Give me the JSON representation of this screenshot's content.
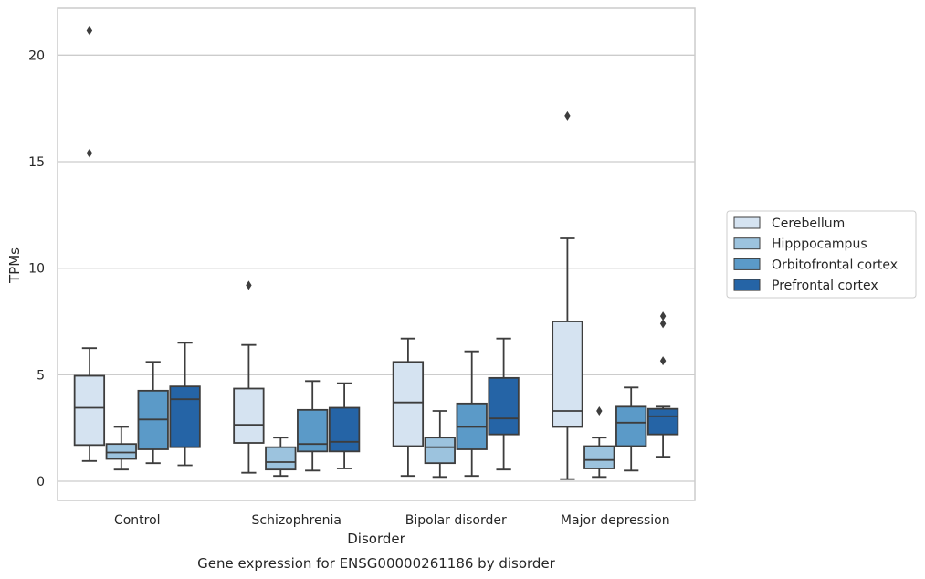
{
  "chart_data": {
    "type": "box",
    "title": "",
    "caption": "Gene expression for ENSG00000261186 by disorder",
    "xlabel": "Disorder",
    "ylabel": "TPMs",
    "ylim": [
      -0.9,
      22.2
    ],
    "yticks": [
      0,
      5,
      10,
      15,
      20
    ],
    "grid": "horizontal",
    "legend_position": "right",
    "categories": [
      "Control",
      "Schizophrenia",
      "Bipolar disorder",
      "Major depression"
    ],
    "series": [
      {
        "name": "Cerebellum",
        "color": "#d5e3f1",
        "boxes": [
          {
            "whisker_low": 0.95,
            "q1": 1.7,
            "median": 3.45,
            "q3": 4.95,
            "whisker_high": 6.25,
            "outliers": [
              15.4,
              21.15
            ]
          },
          {
            "whisker_low": 0.4,
            "q1": 1.8,
            "median": 2.65,
            "q3": 4.35,
            "whisker_high": 6.4,
            "outliers": [
              9.2
            ]
          },
          {
            "whisker_low": 0.25,
            "q1": 1.65,
            "median": 3.7,
            "q3": 5.6,
            "whisker_high": 6.7,
            "outliers": []
          },
          {
            "whisker_low": 0.1,
            "q1": 2.55,
            "median": 3.3,
            "q3": 7.5,
            "whisker_high": 11.4,
            "outliers": [
              17.15
            ]
          }
        ]
      },
      {
        "name": "Hipppocampus",
        "color": "#9cc3de",
        "boxes": [
          {
            "whisker_low": 0.55,
            "q1": 1.05,
            "median": 1.35,
            "q3": 1.75,
            "whisker_high": 2.55,
            "outliers": []
          },
          {
            "whisker_low": 0.25,
            "q1": 0.55,
            "median": 0.9,
            "q3": 1.6,
            "whisker_high": 2.05,
            "outliers": []
          },
          {
            "whisker_low": 0.2,
            "q1": 0.85,
            "median": 1.6,
            "q3": 2.05,
            "whisker_high": 3.3,
            "outliers": []
          },
          {
            "whisker_low": 0.2,
            "q1": 0.6,
            "median": 1.0,
            "q3": 1.65,
            "whisker_high": 2.05,
            "outliers": [
              3.3
            ]
          }
        ]
      },
      {
        "name": "Orbitofrontal cortex",
        "color": "#5b9ac8",
        "boxes": [
          {
            "whisker_low": 0.85,
            "q1": 1.5,
            "median": 2.9,
            "q3": 4.25,
            "whisker_high": 5.6,
            "outliers": []
          },
          {
            "whisker_low": 0.5,
            "q1": 1.4,
            "median": 1.75,
            "q3": 3.35,
            "whisker_high": 4.7,
            "outliers": []
          },
          {
            "whisker_low": 0.25,
            "q1": 1.5,
            "median": 2.55,
            "q3": 3.65,
            "whisker_high": 6.1,
            "outliers": []
          },
          {
            "whisker_low": 0.5,
            "q1": 1.65,
            "median": 2.75,
            "q3": 3.5,
            "whisker_high": 4.4,
            "outliers": []
          }
        ]
      },
      {
        "name": "Prefrontal cortex",
        "color": "#2564a6",
        "boxes": [
          {
            "whisker_low": 0.75,
            "q1": 1.6,
            "median": 3.85,
            "q3": 4.45,
            "whisker_high": 6.5,
            "outliers": []
          },
          {
            "whisker_low": 0.6,
            "q1": 1.4,
            "median": 1.85,
            "q3": 3.45,
            "whisker_high": 4.6,
            "outliers": []
          },
          {
            "whisker_low": 0.55,
            "q1": 2.2,
            "median": 2.95,
            "q3": 4.85,
            "whisker_high": 6.7,
            "outliers": []
          },
          {
            "whisker_low": 1.15,
            "q1": 2.2,
            "median": 3.05,
            "q3": 3.4,
            "whisker_high": 3.5,
            "outliers": [
              5.65,
              7.4,
              7.75
            ]
          }
        ]
      }
    ]
  }
}
